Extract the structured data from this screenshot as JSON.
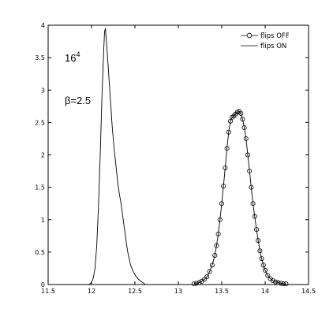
{
  "chart_data": {
    "type": "line",
    "title": "",
    "xlabel": "",
    "ylabel": "",
    "xlim": [
      11.5,
      14.5
    ],
    "ylim": [
      0,
      4
    ],
    "xticks": [
      "11.5",
      "12",
      "12.5",
      "13",
      "13.5",
      "14",
      "14.5"
    ],
    "yticks": [
      "0",
      "0.5",
      "1",
      "1.5",
      "2",
      "2.5",
      "3",
      "3.5",
      "4"
    ],
    "grid": false,
    "legend_position": "top-right",
    "annotations": {
      "lattice_base": "16",
      "lattice_exp": "4",
      "beta": "β=2.5"
    },
    "series": [
      {
        "name": "flips OFF",
        "style": "line-circle",
        "x": [
          13.18,
          13.21,
          13.24,
          13.27,
          13.3,
          13.33,
          13.36,
          13.39,
          13.42,
          13.44,
          13.46,
          13.48,
          13.5,
          13.52,
          13.54,
          13.56,
          13.58,
          13.6,
          13.62,
          13.64,
          13.66,
          13.68,
          13.7,
          13.72,
          13.74,
          13.76,
          13.78,
          13.8,
          13.82,
          13.84,
          13.86,
          13.88,
          13.9,
          13.92,
          13.94,
          13.96,
          13.98,
          14.0,
          14.03,
          14.06,
          14.09,
          14.12,
          14.15,
          14.18,
          14.21,
          14.24
        ],
        "y": [
          0.01,
          0.02,
          0.03,
          0.05,
          0.08,
          0.12,
          0.2,
          0.3,
          0.45,
          0.6,
          0.78,
          1.0,
          1.25,
          1.52,
          1.8,
          2.1,
          2.35,
          2.52,
          2.58,
          2.6,
          2.63,
          2.66,
          2.67,
          2.64,
          2.55,
          2.42,
          2.25,
          2.0,
          1.75,
          1.5,
          1.25,
          1.05,
          0.85,
          0.68,
          0.52,
          0.4,
          0.3,
          0.22,
          0.14,
          0.09,
          0.06,
          0.04,
          0.03,
          0.02,
          0.01,
          0.01
        ]
      },
      {
        "name": "flips ON",
        "style": "line",
        "x": [
          11.97,
          12.0,
          12.02,
          12.04,
          12.06,
          12.08,
          12.1,
          12.12,
          12.14,
          12.15,
          12.16,
          12.18,
          12.2,
          12.22,
          12.24,
          12.26,
          12.28,
          12.3,
          12.32,
          12.34,
          12.36,
          12.38,
          12.4,
          12.42,
          12.45,
          12.48,
          12.51,
          12.54,
          12.57,
          12.6,
          12.62
        ],
        "y": [
          0.0,
          0.03,
          0.1,
          0.25,
          0.6,
          1.2,
          2.0,
          2.9,
          3.6,
          3.9,
          3.95,
          3.6,
          3.2,
          2.8,
          2.4,
          2.1,
          1.85,
          1.6,
          1.4,
          1.25,
          1.05,
          0.85,
          0.65,
          0.48,
          0.3,
          0.2,
          0.13,
          0.08,
          0.05,
          0.02,
          0.0
        ]
      }
    ]
  }
}
